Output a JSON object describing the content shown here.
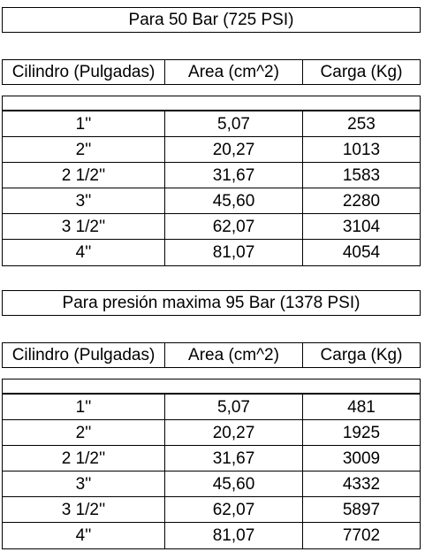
{
  "section1": {
    "title": "Para 50 Bar (725 PSI)",
    "headers": [
      "Cilindro (Pulgadas)",
      "Area (cm^2)",
      "Carga (Kg)"
    ],
    "rows": [
      [
        "1''",
        "5,07",
        "253"
      ],
      [
        "2''",
        "20,27",
        "1013"
      ],
      [
        "2 1/2''",
        "31,67",
        "1583"
      ],
      [
        "3''",
        "45,60",
        "2280"
      ],
      [
        "3 1/2''",
        "62,07",
        "3104"
      ],
      [
        "4''",
        "81,07",
        "4054"
      ]
    ]
  },
  "section2": {
    "title": "Para presión maxima 95 Bar (1378 PSI)",
    "headers": [
      "Cilindro (Pulgadas)",
      "Area (cm^2)",
      "Carga (Kg)"
    ],
    "rows": [
      [
        "1''",
        "5,07",
        "481"
      ],
      [
        "2''",
        "20,27",
        "1925"
      ],
      [
        "2 1/2''",
        "31,67",
        "3009"
      ],
      [
        "3''",
        "45,60",
        "4332"
      ],
      [
        "3 1/2''",
        "62,07",
        "5897"
      ],
      [
        "4''",
        "81,07",
        "7702"
      ]
    ]
  }
}
